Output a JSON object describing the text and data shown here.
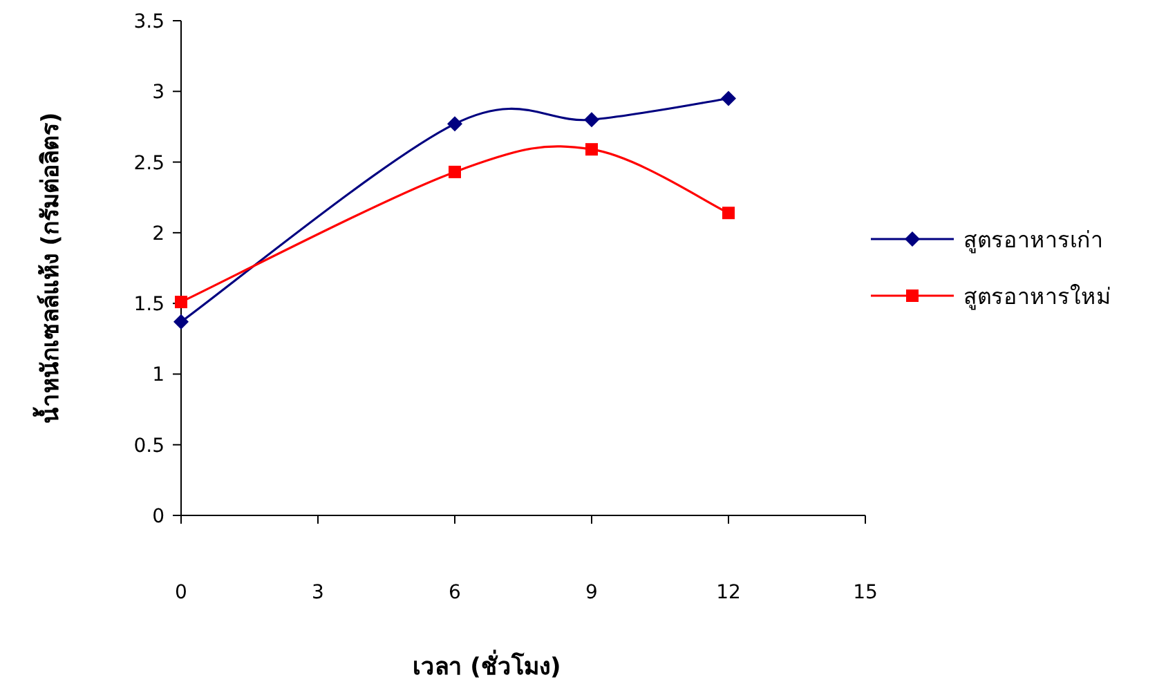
{
  "chart_data": {
    "type": "line",
    "xlabel": "เวลา (ชั่วโมง)",
    "ylabel": "น้ำหนักเซลล์แห้ง (กรัมต่อลิตร)",
    "x": [
      0,
      6,
      9,
      12
    ],
    "xlim": [
      0,
      15
    ],
    "xticks": [
      0,
      3,
      6,
      9,
      12,
      15
    ],
    "ylim": [
      0,
      3.5
    ],
    "yticks": [
      0,
      0.5,
      1,
      1.5,
      2,
      2.5,
      3,
      3.5
    ],
    "legend": "right",
    "grid": false,
    "line_style": "solid",
    "series": [
      {
        "name": "สูตรอาหารเก่า",
        "color": "#000080",
        "marker": "diamond",
        "values": [
          1.37,
          2.77,
          2.8,
          2.95
        ]
      },
      {
        "name": "สูตรอาหารใหม่",
        "color": "#ff0000",
        "marker": "square",
        "values": [
          1.51,
          2.43,
          2.59,
          2.14
        ]
      }
    ]
  }
}
